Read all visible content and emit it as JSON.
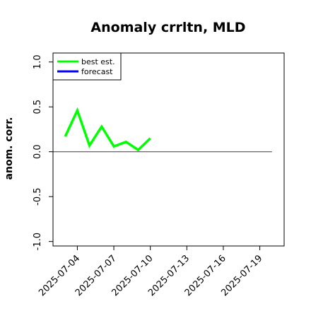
{
  "chart_data": {
    "type": "line",
    "title": "Anomaly crrltn, MLD",
    "ylabel": "anom. corr.",
    "xlabel": "",
    "ylim": [
      -1.05,
      1.1
    ],
    "xlim": [
      "2025-07-02",
      "2025-07-21"
    ],
    "yticks": [
      "-1.0",
      "-0.5",
      "0.0",
      "0.5",
      "1.0"
    ],
    "xticks": [
      {
        "date": "2025-07-04",
        "label": "2025-07-04",
        "color": "#000000"
      },
      {
        "date": "2025-07-07",
        "label": "2025-07-07",
        "color": "#000000"
      },
      {
        "date": "2025-07-10",
        "label": "2025-07-10",
        "color": "#228B22"
      },
      {
        "date": "2025-07-13",
        "label": "2025-07-13",
        "color": "#000000"
      },
      {
        "date": "2025-07-16",
        "label": "2025-07-16",
        "color": "#000000"
      },
      {
        "date": "2025-07-19",
        "label": "2025-07-19",
        "color": "#000000"
      }
    ],
    "reference_line": {
      "y": 0.0,
      "from": "2025-07-02",
      "to": "2025-07-20",
      "color": "#555555"
    },
    "legend": {
      "position": "top-left"
    },
    "series": [
      {
        "name": "best est.",
        "color": "#00ff00",
        "x": [
          "2025-07-03",
          "2025-07-04",
          "2025-07-05",
          "2025-07-06",
          "2025-07-07",
          "2025-07-08",
          "2025-07-09",
          "2025-07-10"
        ],
        "y": [
          0.17,
          0.46,
          0.07,
          0.28,
          0.06,
          0.11,
          0.02,
          0.15
        ]
      },
      {
        "name": "forecast",
        "color": "#0000ff",
        "x": [],
        "y": []
      }
    ]
  }
}
